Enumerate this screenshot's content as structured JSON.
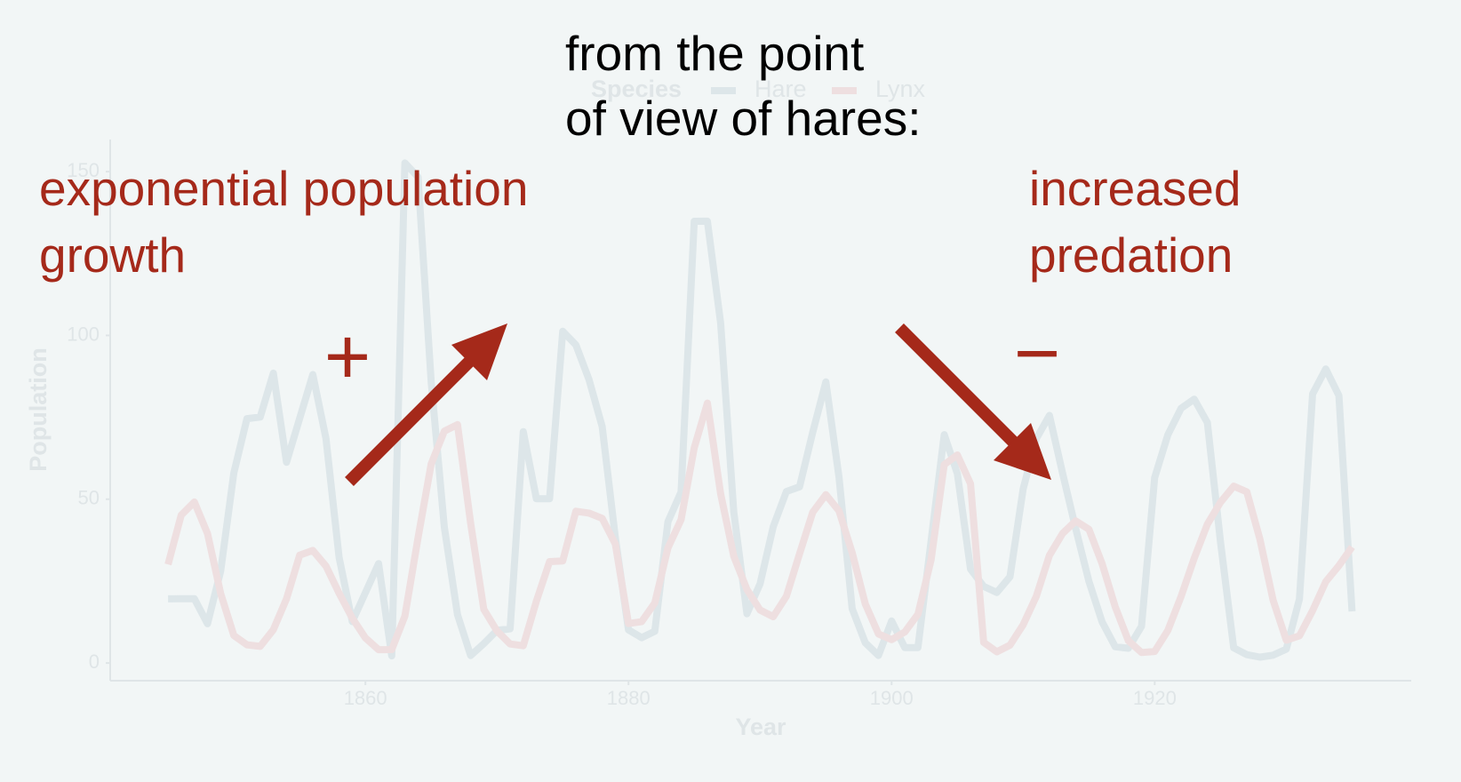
{
  "chart_data": {
    "type": "line",
    "legend_title": "Species",
    "x_label": "Year",
    "y_label": "Population",
    "x": [
      1845,
      1846,
      1847,
      1848,
      1849,
      1850,
      1851,
      1852,
      1853,
      1854,
      1855,
      1856,
      1857,
      1858,
      1859,
      1860,
      1861,
      1862,
      1863,
      1864,
      1865,
      1866,
      1867,
      1868,
      1869,
      1870,
      1871,
      1872,
      1873,
      1874,
      1875,
      1876,
      1877,
      1878,
      1879,
      1880,
      1881,
      1882,
      1883,
      1884,
      1885,
      1886,
      1887,
      1888,
      1889,
      1890,
      1891,
      1892,
      1893,
      1894,
      1895,
      1896,
      1897,
      1898,
      1899,
      1900,
      1901,
      1902,
      1903,
      1904,
      1905,
      1906,
      1907,
      1908,
      1909,
      1910,
      1911,
      1912,
      1913,
      1914,
      1915,
      1916,
      1917,
      1918,
      1919,
      1920,
      1921,
      1922,
      1923,
      1924,
      1925,
      1926,
      1927,
      1928,
      1929,
      1930,
      1931,
      1932,
      1933,
      1934,
      1935
    ],
    "series": [
      {
        "name": "Hare",
        "color": "#dde6e9",
        "values": [
          19.58,
          19.6,
          19.61,
          11.99,
          28.04,
          58,
          74.6,
          75.09,
          88.48,
          61.28,
          74.67,
          88.06,
          68.51,
          32.19,
          12.64,
          21.49,
          30.35,
          2.18,
          152.65,
          148.36,
          85.81,
          41.41,
          14.75,
          2.28,
          5.91,
          9.95,
          10.44,
          70.64,
          50.12,
          50.13,
          101.25,
          97.12,
          86.51,
          72.17,
          38.32,
          10.11,
          7.74,
          9.67,
          43.12,
          52.21,
          134.85,
          134.86,
          103.79,
          46.1,
          15.03,
          24.2,
          41.65,
          52.34,
          53.78,
          70.4,
          85.81,
          56.69,
          16.59,
          6.16,
          2.3,
          12.82,
          4.72,
          4.73,
          37.22,
          69.72,
          57.78,
          28.68,
          23.37,
          21.54,
          26.34,
          53.1,
          68.48,
          75.58,
          57.92,
          40.97,
          24.95,
          12.59,
          4.97,
          4.5,
          11.21,
          56.6,
          69.63,
          77.74,
          80.53,
          73.38,
          36.93,
          4.64,
          2.54,
          1.8,
          2.39,
          4.23,
          19.52,
          82.11,
          89.76,
          81.66,
          15.76
        ]
      },
      {
        "name": "Lynx",
        "color": "#eedfe0",
        "values": [
          30.09,
          45.15,
          49.15,
          39.52,
          21.23,
          8.42,
          5.56,
          5.08,
          10.17,
          19.6,
          32.91,
          34.38,
          29.59,
          21.3,
          13.69,
          7.65,
          4.08,
          4.09,
          14.33,
          38.22,
          60.78,
          70.77,
          72.77,
          42.68,
          16.39,
          9.83,
          5.8,
          5.26,
          18.91,
          30.95,
          31.18,
          46.34,
          45.77,
          44.15,
          36.33,
          12.03,
          12.6,
          18.34,
          35.14,
          43.77,
          65.69,
          79.35,
          51.65,
          32.59,
          22.45,
          16.16,
          14.12,
          20.38,
          33.33,
          46,
          51.41,
          46.43,
          33.68,
          18.01,
          8.86,
          7.13,
          9.47,
          14.86,
          31.47,
          60.57,
          63.51,
          54.7,
          6.3,
          3.41,
          5.44,
          11.65,
          20.35,
          32.88,
          39.55,
          43.36,
          40.83,
          30.36,
          17.18,
          6.82,
          3.19,
          3.52,
          9.94,
          20.3,
          31.99,
          42.36,
          49.08,
          53.99,
          52.25,
          37.7,
          19.14,
          6.98,
          8.31,
          16.01,
          24.82,
          29.7,
          35.4
        ]
      }
    ],
    "xlim": [
      1840.6,
      1939.5
    ],
    "ylim": [
      -5.4,
      159.8
    ],
    "xticks": [
      1860,
      1880,
      1900,
      1920
    ],
    "yticks": [
      0,
      50,
      100,
      150
    ],
    "grid": false,
    "legend_position": "top"
  },
  "annotations": {
    "heading_lines": [
      "from the point",
      "of view of hares:"
    ],
    "left_lines": [
      "exponential population",
      "growth"
    ],
    "right_lines": [
      "increased",
      "predation"
    ],
    "plus": "+",
    "minus": "−"
  }
}
